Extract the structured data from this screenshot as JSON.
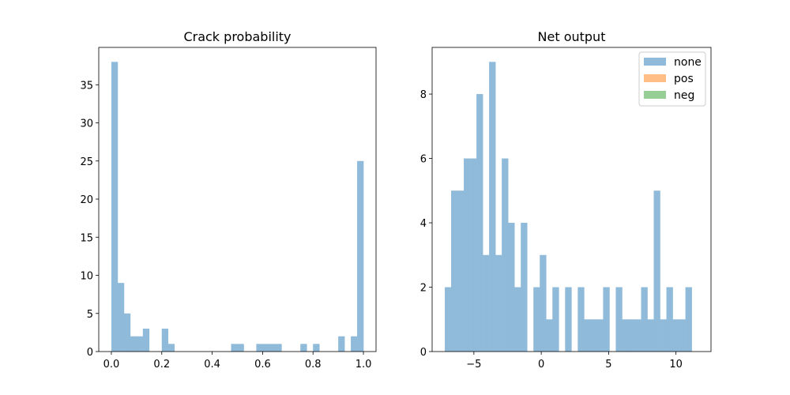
{
  "chart_data": [
    {
      "type": "bar",
      "title": "Crack probability",
      "xlabel": "",
      "ylabel": "",
      "xlim": [
        -0.05,
        1.05
      ],
      "ylim": [
        0,
        39.9
      ],
      "xticks": [
        0.0,
        0.2,
        0.4,
        0.6,
        0.8,
        1.0
      ],
      "xtick_labels": [
        "0.0",
        "0.2",
        "0.4",
        "0.6",
        "0.8",
        "1.0"
      ],
      "yticks": [
        0,
        5,
        10,
        15,
        20,
        25,
        30,
        35
      ],
      "ytick_labels": [
        "0",
        "5",
        "10",
        "15",
        "20",
        "25",
        "30",
        "35"
      ],
      "bin_edges": [
        0.0,
        0.025,
        0.05,
        0.075,
        0.1,
        0.125,
        0.15,
        0.175,
        0.2,
        0.225,
        0.25,
        0.275,
        0.3,
        0.325,
        0.35,
        0.375,
        0.4,
        0.425,
        0.45,
        0.475,
        0.5,
        0.525,
        0.55,
        0.575,
        0.6,
        0.625,
        0.65,
        0.675,
        0.7,
        0.725,
        0.75,
        0.775,
        0.8,
        0.825,
        0.85,
        0.875,
        0.9,
        0.925,
        0.95,
        0.975,
        1.0
      ],
      "series": [
        {
          "color": "#8fbad9",
          "values": [
            38,
            9,
            5,
            2,
            2,
            3,
            0,
            0,
            3,
            1,
            0,
            0,
            0,
            0,
            0,
            0,
            0,
            0,
            0,
            1,
            1,
            0,
            0,
            1,
            1,
            1,
            1,
            0,
            0,
            0,
            1,
            0,
            1,
            0,
            0,
            0,
            2,
            0,
            2,
            25
          ]
        }
      ],
      "grid": false,
      "legend": null
    },
    {
      "type": "bar",
      "title": "Net output",
      "xlabel": "",
      "ylabel": "",
      "xlim": [
        -8.1,
        12.6
      ],
      "ylim": [
        0,
        9.45
      ],
      "xticks": [
        -5,
        0,
        5,
        10
      ],
      "xtick_labels": [
        "−5",
        "0",
        "5",
        "10"
      ],
      "yticks": [
        0,
        2,
        4,
        6,
        8
      ],
      "ytick_labels": [
        "0",
        "2",
        "4",
        "6",
        "8"
      ],
      "bin_edges": [
        -7.16,
        -6.69,
        -6.22,
        -5.75,
        -5.28,
        -4.81,
        -4.34,
        -3.87,
        -3.4,
        -2.93,
        -2.46,
        -1.99,
        -1.52,
        -1.05,
        -0.58,
        -0.11,
        0.36,
        0.83,
        1.3,
        1.77,
        2.24,
        2.71,
        3.18,
        3.65,
        4.12,
        4.59,
        5.06,
        5.53,
        6.0,
        6.47,
        6.94,
        7.41,
        7.88,
        8.35,
        8.82,
        9.29,
        9.76,
        10.23,
        10.7,
        11.17,
        11.64
      ],
      "series": [
        {
          "name": "none",
          "color": "#8fbad9",
          "values": [
            2,
            5,
            5,
            6,
            6,
            8,
            3,
            9,
            3,
            6,
            4,
            2,
            4,
            0,
            2,
            3,
            1,
            2,
            0,
            2,
            0,
            2,
            1,
            1,
            1,
            2,
            0,
            2,
            1,
            1,
            1,
            2,
            1,
            5,
            1,
            2,
            1,
            1,
            2,
            0
          ]
        },
        {
          "name": "pos",
          "color": "#ffbe86",
          "values": []
        },
        {
          "name": "neg",
          "color": "#95cf95",
          "values": []
        }
      ],
      "grid": false,
      "legend": "top-right"
    }
  ]
}
